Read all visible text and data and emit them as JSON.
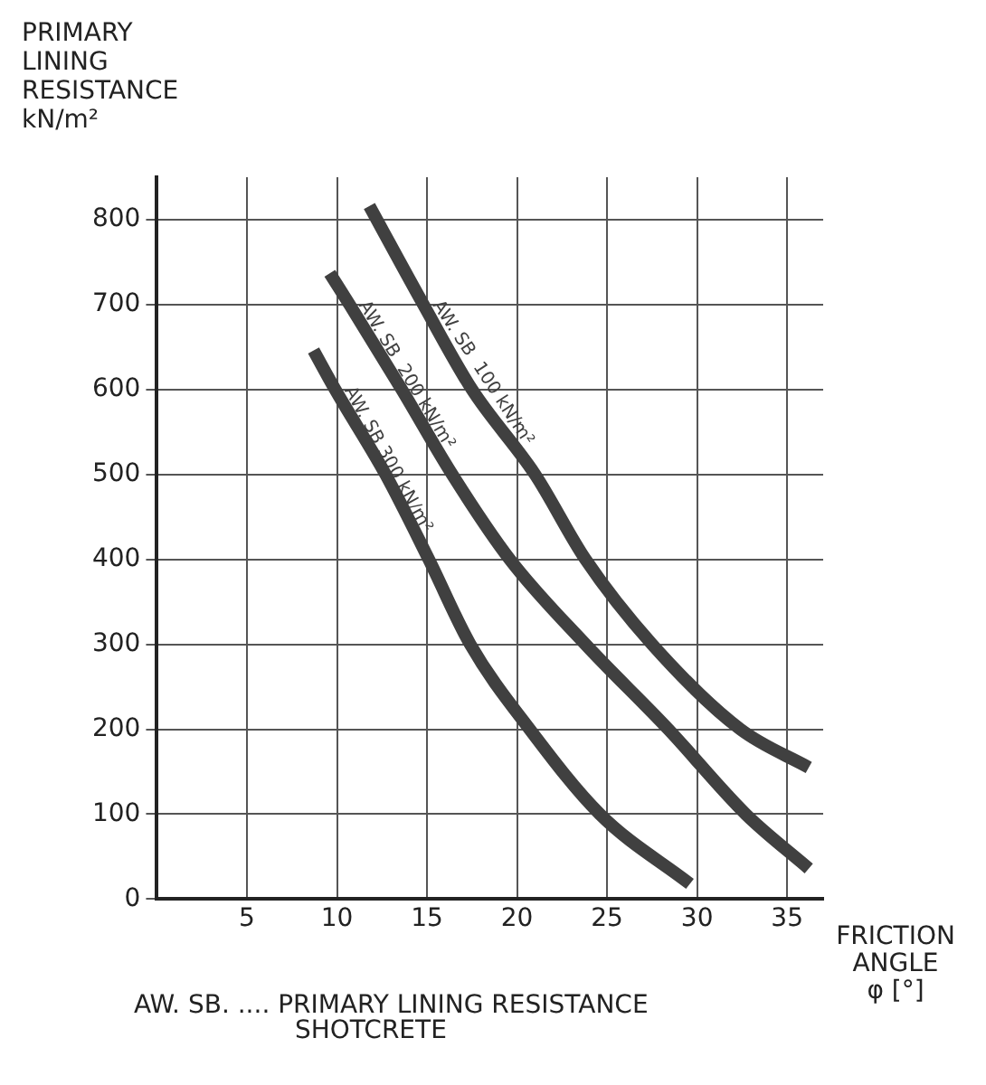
{
  "chart_data": {
    "type": "line",
    "ylabel": "PRIMARY\nLINING\nRESISTANCE\nkN/m²",
    "xlabel": "FRICTION\nANGLE\nφ [°]",
    "annotations": [
      "AW. SB. .... PRIMARY LINING RESISTANCE\nSHOTCRETE"
    ],
    "series": [
      {
        "name": "AW. SB  100 kN/m²",
        "color": "#404040",
        "x": [
          11.8,
          14.8,
          17.5,
          21.0,
          23.8,
          27.5,
          32.4,
          36.2
        ],
        "values": [
          816,
          700,
          600,
          500,
          400,
          300,
          200,
          155
        ]
      },
      {
        "name": "AW. SB  200 kN/m²",
        "color": "#404040",
        "x": [
          9.6,
          10.7,
          13.6,
          16.4,
          19.6,
          23.8,
          28.4,
          32.7,
          36.2
        ],
        "values": [
          737,
          700,
          600,
          500,
          400,
          300,
          200,
          100,
          36
        ]
      },
      {
        "name": "AW. SB 300 kN/m²",
        "color": "#404040",
        "x": [
          8.7,
          9.9,
          12.7,
          15.1,
          17.4,
          20.7,
          24.6,
          29.6
        ],
        "values": [
          646,
          600,
          500,
          400,
          300,
          200,
          100,
          18
        ]
      }
    ],
    "xlim": [
      0,
      37
    ],
    "ylim": [
      0,
      850
    ],
    "xticks": [
      {
        "value": 0,
        "label": null
      },
      5,
      10,
      15,
      20,
      25,
      30,
      35
    ],
    "yticks": [
      0,
      100,
      200,
      300,
      400,
      500,
      600,
      700,
      800
    ],
    "grid": true,
    "legend": false,
    "marker": "none",
    "line_style": "solid"
  }
}
